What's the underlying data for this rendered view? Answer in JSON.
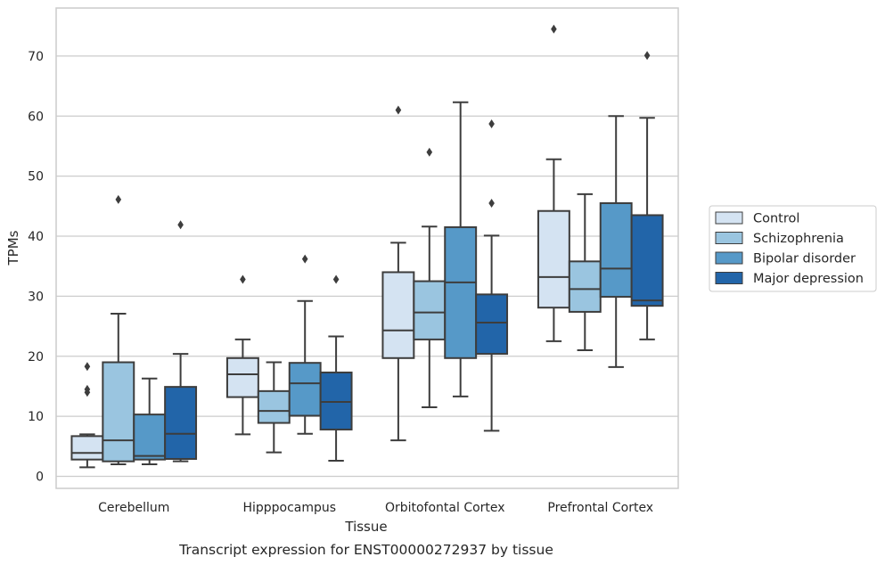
{
  "chart_data": {
    "type": "box",
    "title": "",
    "caption": "Transcript expression for ENST00000272937 by tissue",
    "xlabel": "Tissue",
    "ylabel": "TPMs",
    "ylim": [
      -2,
      78
    ],
    "yticks": [
      0,
      10,
      20,
      30,
      40,
      50,
      60,
      70
    ],
    "grid": "horizontal",
    "legend_position": "right",
    "categories": [
      "Cerebellum",
      "Hipppocampus",
      "Orbitofontal Cortex",
      "Prefrontal Cortex"
    ],
    "series": [
      {
        "name": "Control",
        "color": "#d4e3f2",
        "boxes": [
          {
            "whislo": 1.5,
            "q1": 2.8,
            "med": 3.9,
            "q3": 6.7,
            "whishi": 7.0,
            "fliers": [
              14.0,
              14.5,
              18.3
            ]
          },
          {
            "whislo": 7.0,
            "q1": 13.2,
            "med": 17.0,
            "q3": 19.7,
            "whishi": 22.8,
            "fliers": [
              32.8
            ]
          },
          {
            "whislo": 6.0,
            "q1": 19.7,
            "med": 24.3,
            "q3": 34.0,
            "whishi": 38.9,
            "fliers": [
              61.0
            ]
          },
          {
            "whislo": 22.5,
            "q1": 28.1,
            "med": 33.2,
            "q3": 44.2,
            "whishi": 52.8,
            "fliers": [
              74.5
            ]
          }
        ]
      },
      {
        "name": "Schizophrenia",
        "color": "#9ac5e0",
        "boxes": [
          {
            "whislo": 2.0,
            "q1": 2.5,
            "med": 6.0,
            "q3": 19.0,
            "whishi": 27.1,
            "fliers": [
              46.1
            ]
          },
          {
            "whislo": 4.0,
            "q1": 8.9,
            "med": 10.9,
            "q3": 14.2,
            "whishi": 19.0,
            "fliers": []
          },
          {
            "whislo": 11.5,
            "q1": 22.8,
            "med": 27.3,
            "q3": 32.5,
            "whishi": 41.6,
            "fliers": [
              54.0
            ]
          },
          {
            "whislo": 21.0,
            "q1": 27.4,
            "med": 31.2,
            "q3": 35.8,
            "whishi": 47.0,
            "fliers": []
          }
        ]
      },
      {
        "name": "Bipolar disorder",
        "color": "#5699c8",
        "boxes": [
          {
            "whislo": 2.0,
            "q1": 2.8,
            "med": 3.4,
            "q3": 10.3,
            "whishi": 16.3,
            "fliers": []
          },
          {
            "whislo": 7.1,
            "q1": 10.1,
            "med": 15.5,
            "q3": 18.9,
            "whishi": 29.2,
            "fliers": [
              36.2
            ]
          },
          {
            "whislo": 13.3,
            "q1": 19.7,
            "med": 32.3,
            "q3": 41.5,
            "whishi": 62.3,
            "fliers": []
          },
          {
            "whislo": 18.2,
            "q1": 29.9,
            "med": 34.6,
            "q3": 45.5,
            "whishi": 60.0,
            "fliers": []
          }
        ]
      },
      {
        "name": "Major depression",
        "color": "#2265a9",
        "boxes": [
          {
            "whislo": 2.5,
            "q1": 2.9,
            "med": 7.1,
            "q3": 14.9,
            "whishi": 20.4,
            "fliers": [
              41.9
            ]
          },
          {
            "whislo": 2.6,
            "q1": 7.8,
            "med": 12.4,
            "q3": 17.3,
            "whishi": 23.3,
            "fliers": [
              32.8
            ]
          },
          {
            "whislo": 7.6,
            "q1": 20.4,
            "med": 25.6,
            "q3": 30.3,
            "whishi": 40.1,
            "fliers": [
              45.5,
              58.7
            ]
          },
          {
            "whislo": 22.8,
            "q1": 28.4,
            "med": 29.3,
            "q3": 43.5,
            "whishi": 59.7,
            "fliers": [
              70.1
            ]
          }
        ]
      }
    ]
  }
}
